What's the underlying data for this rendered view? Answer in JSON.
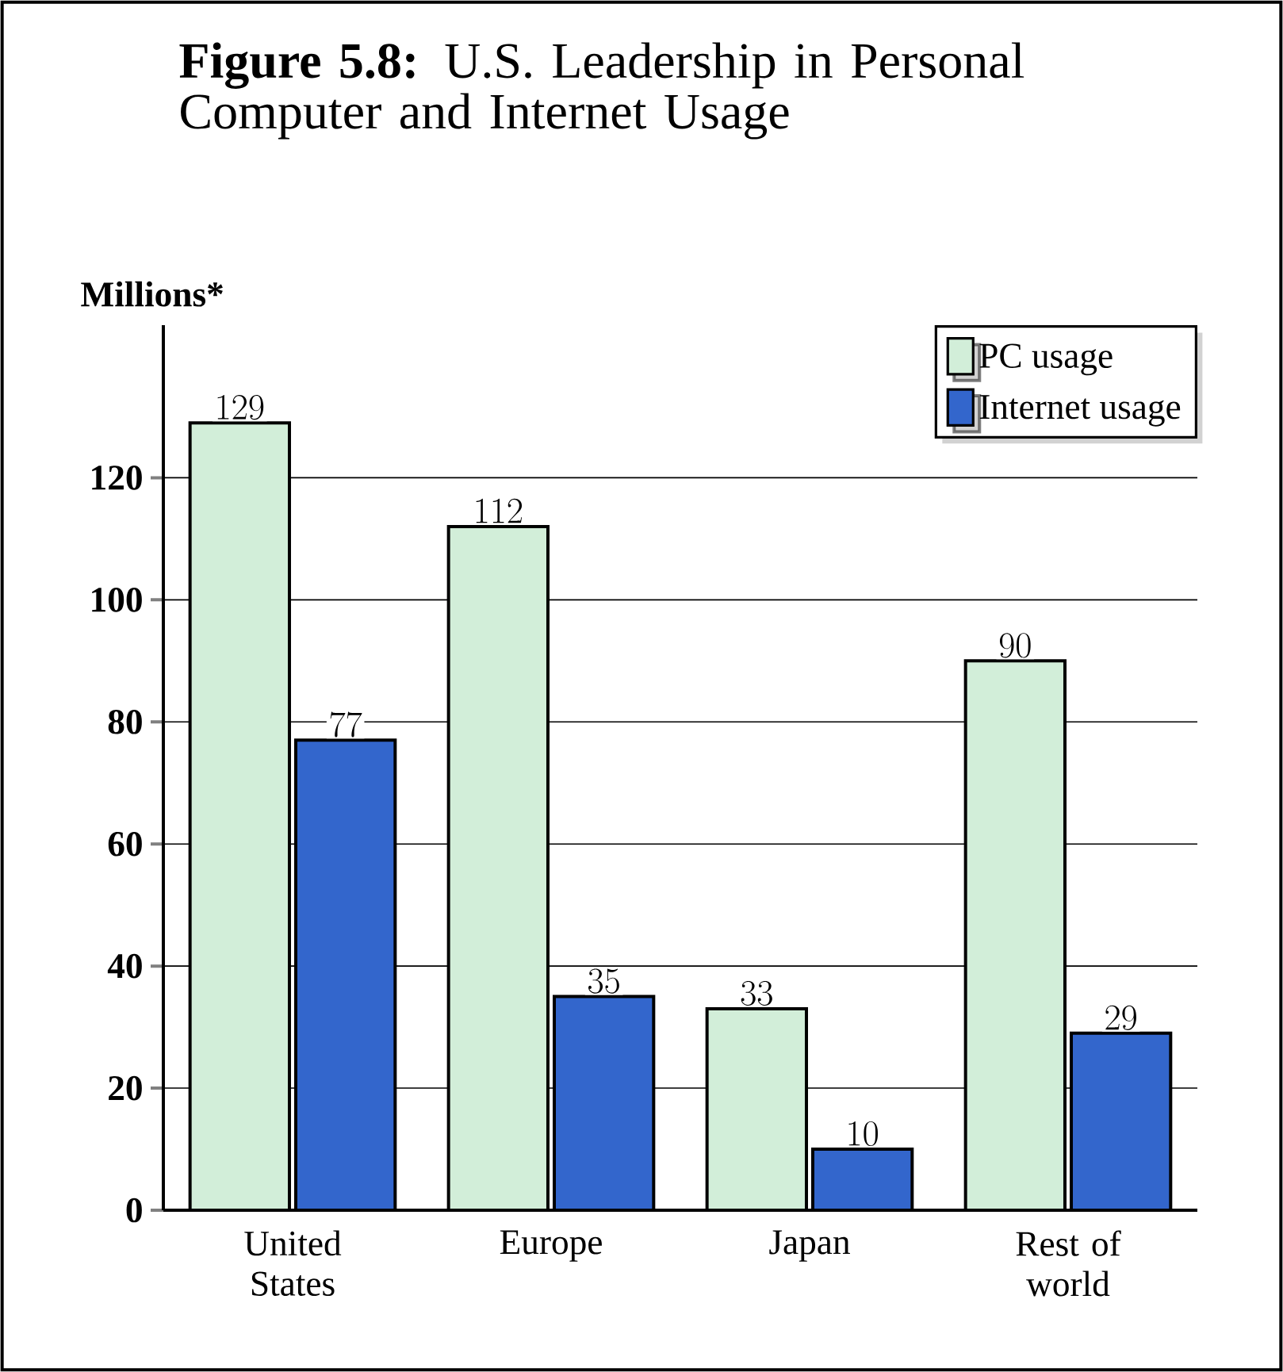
{
  "chart_data": {
    "type": "bar",
    "title": "**Figure 5.8:** U.S. Leadership in Personal Computer and Internet Usage",
    "ylabel": "Millions*",
    "categories": [
      "United States",
      "Europe",
      "Japan",
      "Rest of world"
    ],
    "series": [
      {
        "name": "PC usage",
        "color": "#d2eed9",
        "values": [
          129,
          112,
          33,
          90
        ]
      },
      {
        "name": "Internet usage",
        "color": "#3366cc",
        "values": [
          77,
          35,
          10,
          29
        ]
      }
    ],
    "ylim": [
      0,
      145
    ],
    "yticks": [
      0,
      20,
      40,
      60,
      80,
      100,
      120
    ],
    "grid": "y",
    "legend": "top right",
    "data_labels": true
  }
}
